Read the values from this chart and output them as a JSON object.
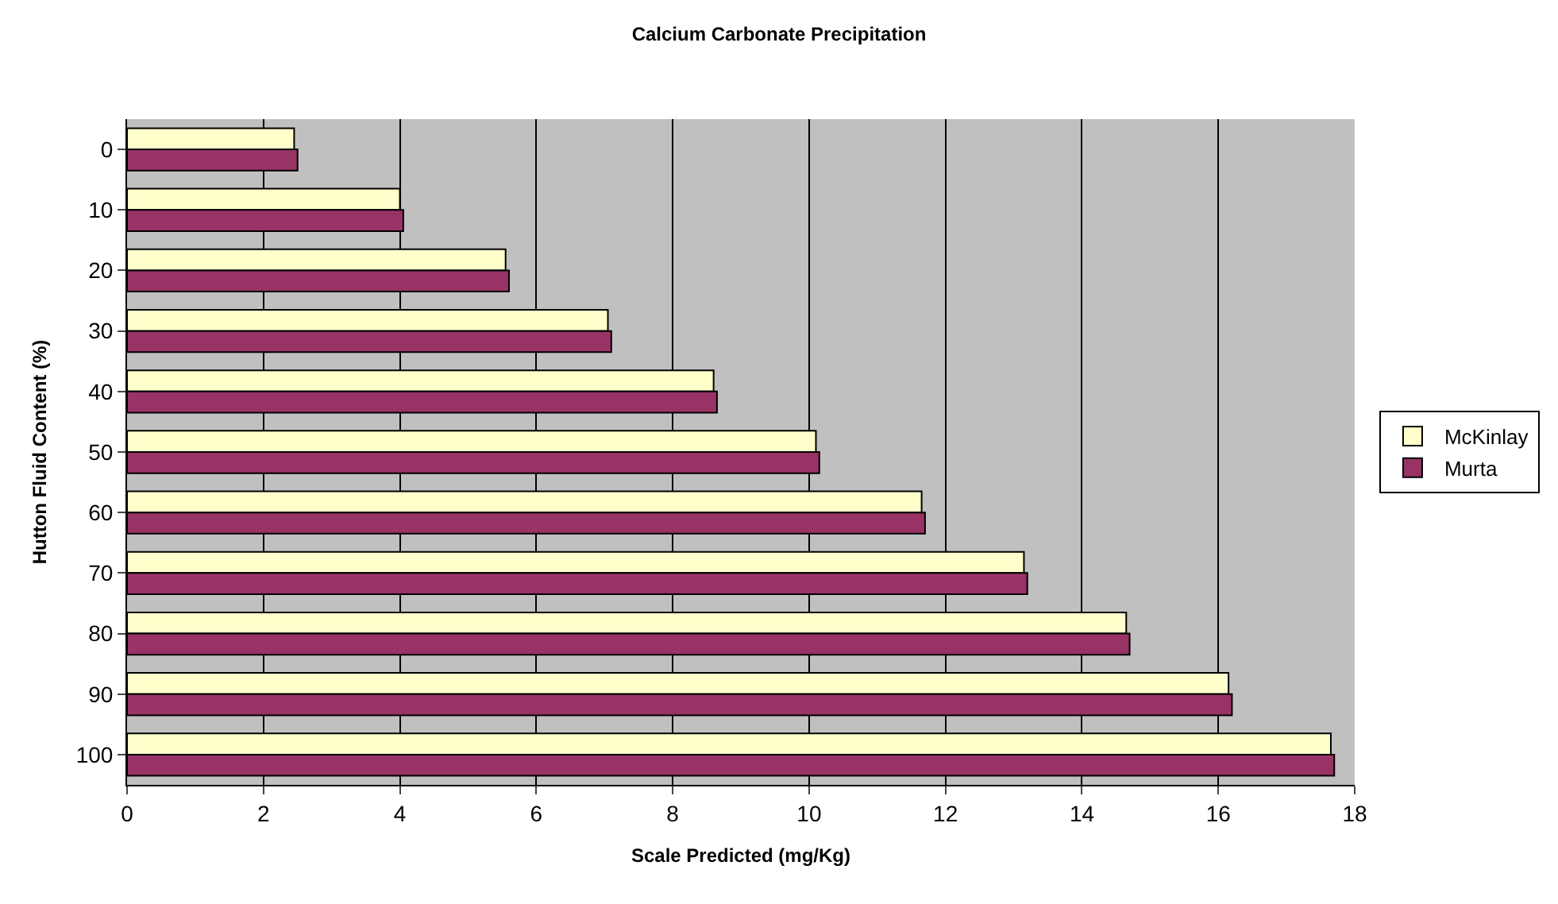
{
  "chart_data": {
    "type": "bar",
    "orientation": "horizontal",
    "title": "Calcium Carbonate Precipitation",
    "xlabel": "Scale Predicted (mg/Kg)",
    "ylabel": "Hutton Fluid Content (%)",
    "categories": [
      "0",
      "10",
      "20",
      "30",
      "40",
      "50",
      "60",
      "70",
      "80",
      "90",
      "100"
    ],
    "series": [
      {
        "name": "McKinlay",
        "color": "#ffffcc",
        "values": [
          2.45,
          4.0,
          5.55,
          7.05,
          8.6,
          10.1,
          11.65,
          13.15,
          14.65,
          16.15,
          17.65
        ]
      },
      {
        "name": "Murta",
        "color": "#993366",
        "values": [
          2.5,
          4.05,
          5.6,
          7.1,
          8.65,
          10.15,
          11.7,
          13.2,
          14.7,
          16.2,
          17.7
        ]
      }
    ],
    "xlim": [
      0,
      18
    ],
    "xticks": [
      0,
      2,
      4,
      6,
      8,
      10,
      12,
      14,
      16,
      18
    ],
    "grid": "x",
    "legend": "right"
  }
}
